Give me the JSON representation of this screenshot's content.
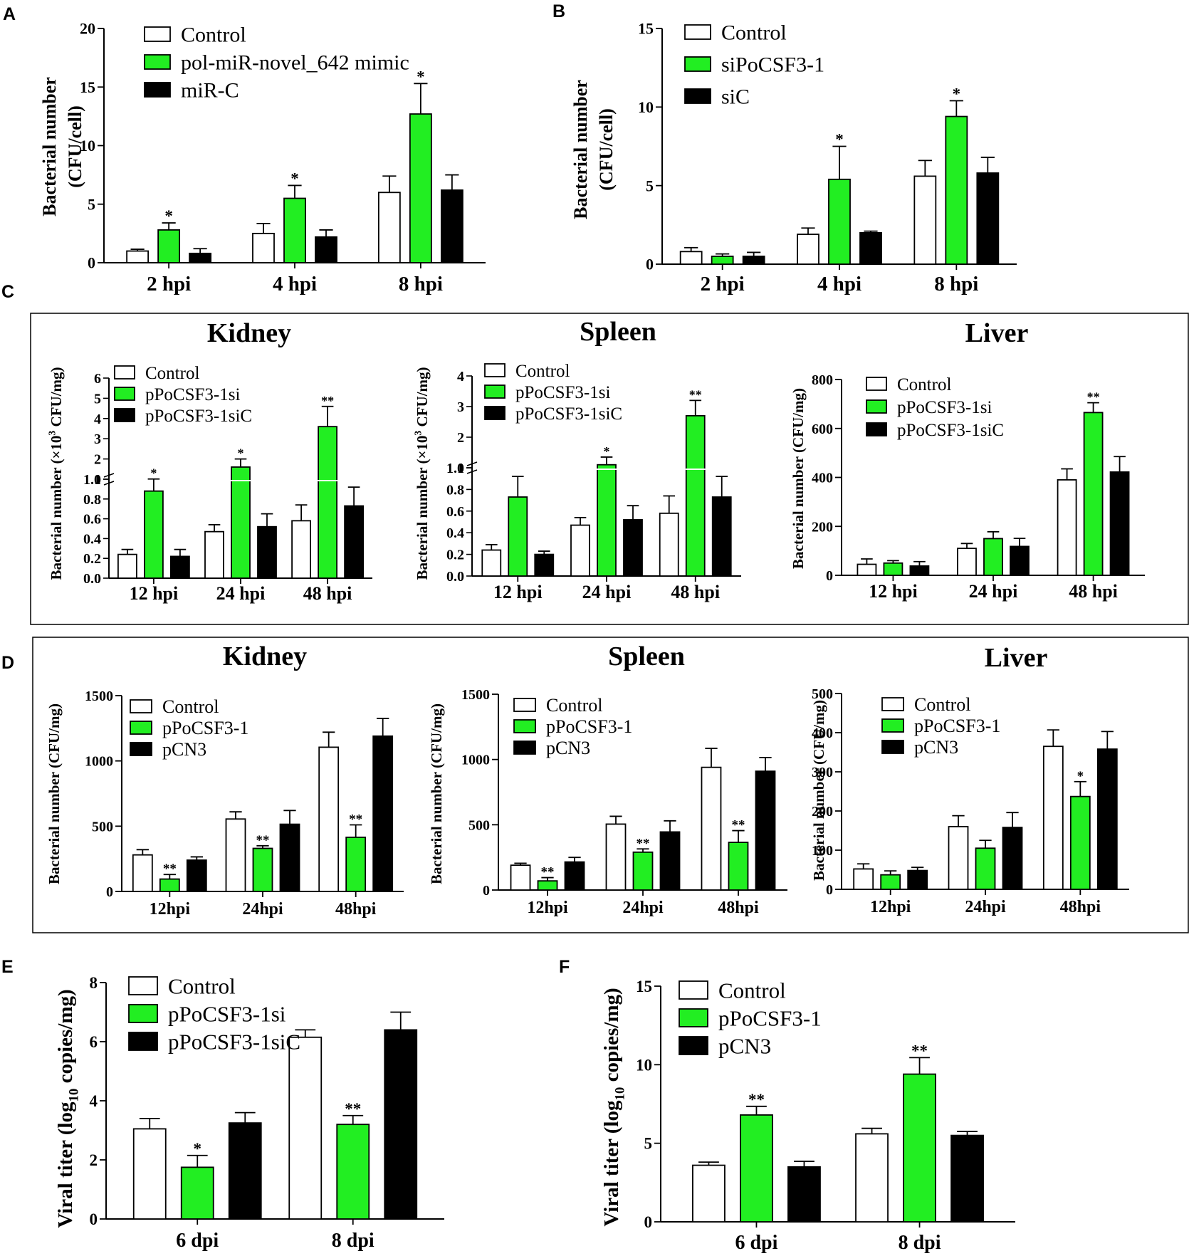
{
  "figure": {
    "panel_labels": {
      "A": "A",
      "B": "B",
      "C": "C",
      "D": "D",
      "E": "E",
      "F": "F"
    },
    "colors": {
      "control": "#ffffff",
      "treatment": "#22ee22",
      "negative": "#000000",
      "axis": "#000000",
      "star": "#000000"
    }
  },
  "chart_data": [
    {
      "id": "A",
      "type": "bar",
      "title": "",
      "ylabel": [
        "Bacterial number",
        "(CFU/cell)"
      ],
      "xlabel": "",
      "categories": [
        "2 hpi",
        "4 hpi",
        "8 hpi"
      ],
      "ylim": [
        0,
        20
      ],
      "yticks": [
        0,
        5,
        10,
        15,
        20
      ],
      "series": [
        {
          "name": "Control",
          "values": [
            1.0,
            2.5,
            6.0
          ],
          "errors": [
            0.15,
            0.85,
            1.4
          ]
        },
        {
          "name": "pol-miR-novel_642 mimic",
          "values": [
            2.8,
            5.5,
            12.7
          ],
          "errors": [
            0.6,
            1.1,
            2.6
          ]
        },
        {
          "name": "miR-C",
          "values": [
            0.8,
            2.2,
            6.2
          ],
          "errors": [
            0.4,
            0.6,
            1.3
          ]
        }
      ],
      "significance": [
        "*",
        "*",
        "*"
      ],
      "legend": "top-left"
    },
    {
      "id": "B",
      "type": "bar",
      "title": "",
      "ylabel": [
        "Bacterial number",
        "(CFU/cell)"
      ],
      "xlabel": "",
      "categories": [
        "2 hpi",
        "4 hpi",
        "8 hpi"
      ],
      "ylim": [
        0,
        15
      ],
      "yticks": [
        0,
        5,
        10,
        15
      ],
      "series": [
        {
          "name": "Control",
          "values": [
            0.8,
            1.9,
            5.6
          ],
          "errors": [
            0.25,
            0.4,
            1.0
          ]
        },
        {
          "name": "siPoCSF3-1",
          "values": [
            0.5,
            5.4,
            9.4
          ],
          "errors": [
            0.15,
            2.1,
            1.0
          ]
        },
        {
          "name": "siC",
          "values": [
            0.5,
            2.0,
            5.8
          ],
          "errors": [
            0.25,
            0.1,
            1.0
          ]
        }
      ],
      "significance": [
        "",
        "*",
        "*"
      ],
      "legend": "top-left"
    },
    {
      "id": "C-kidney",
      "type": "bar",
      "title": "Kidney",
      "broken_axis": true,
      "ylabel": "Bacterial number (×10³ CFU/mg)",
      "ylabel_parts": [
        "Bacterial number (×10",
        "3",
        " CFU/mg)"
      ],
      "xlabel": "",
      "categories": [
        "12 hpi",
        "24 hpi",
        "48 hpi"
      ],
      "ylim_lower": [
        0,
        1.0
      ],
      "yticks_lower": [
        "0.0",
        "0.2",
        "0.4",
        "0.6",
        "0.8",
        "1.0"
      ],
      "ylim_upper": [
        1,
        6
      ],
      "yticks_upper": [
        "1",
        "2",
        "3",
        "4",
        "5",
        "6"
      ],
      "series": [
        {
          "name": "Control",
          "values": [
            0.24,
            0.47,
            0.58
          ],
          "errors": [
            0.05,
            0.07,
            0.16
          ]
        },
        {
          "name": "pPoCSF3-1si",
          "values": [
            0.88,
            1.6,
            3.6
          ],
          "errors": [
            0.13,
            0.4,
            1.0
          ]
        },
        {
          "name": "pPoCSF3-1siC",
          "values": [
            0.22,
            0.52,
            0.73
          ],
          "errors": [
            0.07,
            0.13,
            0.19
          ]
        }
      ],
      "significance": [
        "*",
        "*",
        "**"
      ],
      "legend": "top-left"
    },
    {
      "id": "C-spleen",
      "type": "bar",
      "title": "Spleen",
      "broken_axis": true,
      "ylabel": "Bacterial number (×10³ CFU/mg)",
      "ylabel_parts": [
        "Bacterial number (×10",
        "3",
        " CFU/mg)"
      ],
      "xlabel": "",
      "categories": [
        "12 hpi",
        "24 hpi",
        "48 hpi"
      ],
      "ylim_lower": [
        0,
        1.0
      ],
      "yticks_lower": [
        "0.0",
        "0.2",
        "0.4",
        "0.6",
        "0.8",
        "1.0"
      ],
      "ylim_upper": [
        1,
        4
      ],
      "yticks_upper": [
        "1",
        "2",
        "3",
        "4"
      ],
      "series": [
        {
          "name": "Control",
          "values": [
            0.24,
            0.47,
            0.58
          ],
          "errors": [
            0.05,
            0.07,
            0.16
          ]
        },
        {
          "name": "pPoCSF3-1si",
          "values": [
            0.73,
            1.1,
            2.7
          ],
          "errors": [
            0.19,
            0.25,
            0.5
          ]
        },
        {
          "name": "pPoCSF3-1siC",
          "values": [
            0.2,
            0.52,
            0.73
          ],
          "errors": [
            0.03,
            0.13,
            0.19
          ]
        }
      ],
      "significance": [
        "",
        "*",
        "**"
      ],
      "legend": "top-left"
    },
    {
      "id": "C-liver",
      "type": "bar",
      "title": "Liver",
      "ylabel": "Bacterial number (CFU/mg)",
      "xlabel": "",
      "categories": [
        "12 hpi",
        "24 hpi",
        "48 hpi"
      ],
      "ylim": [
        0,
        800
      ],
      "yticks": [
        0,
        200,
        400,
        600,
        800
      ],
      "series": [
        {
          "name": "Control",
          "values": [
            45,
            110,
            390
          ],
          "errors": [
            22,
            20,
            45
          ]
        },
        {
          "name": "pPoCSF3-1si",
          "values": [
            50,
            150,
            665
          ],
          "errors": [
            10,
            28,
            40
          ]
        },
        {
          "name": "pPoCSF3-1siC",
          "values": [
            38,
            118,
            422
          ],
          "errors": [
            18,
            33,
            63
          ]
        }
      ],
      "significance": [
        "",
        "",
        "**"
      ],
      "legend": "top-left"
    },
    {
      "id": "D-kidney",
      "type": "bar",
      "title": "Kidney",
      "ylabel": "Bacterial number (CFU/mg)",
      "xlabel": "",
      "categories": [
        "12hpi",
        "24hpi",
        "48hpi"
      ],
      "ylim": [
        0,
        1500
      ],
      "yticks": [
        0,
        500,
        1000,
        1500
      ],
      "series": [
        {
          "name": "Control",
          "values": [
            280,
            555,
            1105
          ],
          "errors": [
            40,
            55,
            115
          ]
        },
        {
          "name": "pPoCSF3-1",
          "values": [
            95,
            330,
            415
          ],
          "errors": [
            35,
            20,
            95
          ]
        },
        {
          "name": "pCN3",
          "values": [
            240,
            515,
            1190
          ],
          "errors": [
            25,
            105,
            135
          ]
        }
      ],
      "significance": [
        "**",
        "**",
        "**"
      ],
      "legend": "top-left"
    },
    {
      "id": "D-spleen",
      "type": "bar",
      "title": "Spleen",
      "ylabel": "Bacterial number (CFU/mg)",
      "xlabel": "",
      "categories": [
        "12hpi",
        "24hpi",
        "48hpi"
      ],
      "ylim": [
        0,
        1500
      ],
      "yticks": [
        0,
        500,
        1000,
        1500
      ],
      "series": [
        {
          "name": "Control",
          "values": [
            190,
            505,
            940
          ],
          "errors": [
            15,
            60,
            145
          ]
        },
        {
          "name": "pPoCSF3-1",
          "values": [
            70,
            290,
            365
          ],
          "errors": [
            25,
            25,
            90
          ]
        },
        {
          "name": "pCN3",
          "values": [
            215,
            445,
            910
          ],
          "errors": [
            35,
            85,
            105
          ]
        }
      ],
      "significance": [
        "**",
        "**",
        "**"
      ],
      "legend": "top-left"
    },
    {
      "id": "D-liver",
      "type": "bar",
      "title": "Liver",
      "ylabel": "Bacterial number (CFU/mg)",
      "xlabel": "",
      "categories": [
        "12hpi",
        "24hpi",
        "48hpi"
      ],
      "ylim": [
        0,
        500
      ],
      "yticks": [
        0,
        100,
        200,
        300,
        400,
        500
      ],
      "series": [
        {
          "name": "Control",
          "values": [
            52,
            160,
            365
          ],
          "errors": [
            13,
            28,
            42
          ]
        },
        {
          "name": "pPoCSF3-1",
          "values": [
            37,
            105,
            237
          ],
          "errors": [
            10,
            20,
            38
          ]
        },
        {
          "name": "pCN3",
          "values": [
            48,
            158,
            358
          ],
          "errors": [
            8,
            38,
            45
          ]
        }
      ],
      "significance": [
        "",
        "",
        "*"
      ],
      "legend": "top-left"
    },
    {
      "id": "E",
      "type": "bar",
      "title": "",
      "ylabel": "Viral titer (log₁₀ copies/mg)",
      "ylabel_parts": [
        "Viral titer (log",
        "10",
        " copies/mg)"
      ],
      "xlabel": "",
      "categories": [
        "6 dpi",
        "8 dpi"
      ],
      "ylim": [
        0,
        8
      ],
      "yticks": [
        0,
        2,
        4,
        6,
        8
      ],
      "series": [
        {
          "name": "Control",
          "values": [
            3.05,
            6.15
          ],
          "errors": [
            0.35,
            0.25
          ]
        },
        {
          "name": "pPoCSF3-1si",
          "values": [
            1.75,
            3.2
          ],
          "errors": [
            0.4,
            0.3
          ]
        },
        {
          "name": "pPoCSF3-1siC",
          "values": [
            3.25,
            6.4
          ],
          "errors": [
            0.35,
            0.6
          ]
        }
      ],
      "significance": [
        "*",
        "**"
      ],
      "legend": "top-left"
    },
    {
      "id": "F",
      "type": "bar",
      "title": "",
      "ylabel": "Viral titer (log₁₀ copies/mg)",
      "ylabel_parts": [
        "Viral titer (log",
        "10",
        " copies/mg)"
      ],
      "xlabel": "",
      "categories": [
        "6 dpi",
        "8 dpi"
      ],
      "ylim": [
        0,
        15
      ],
      "yticks": [
        0,
        5,
        10,
        15
      ],
      "series": [
        {
          "name": "Control",
          "values": [
            3.6,
            5.6
          ],
          "errors": [
            0.2,
            0.35
          ]
        },
        {
          "name": "pPoCSF3-1",
          "values": [
            6.8,
            9.4
          ],
          "errors": [
            0.55,
            1.05
          ]
        },
        {
          "name": "pCN3",
          "values": [
            3.5,
            5.5
          ],
          "errors": [
            0.35,
            0.25
          ]
        }
      ],
      "significance": [
        "**",
        "**"
      ],
      "legend": "top-left"
    }
  ]
}
